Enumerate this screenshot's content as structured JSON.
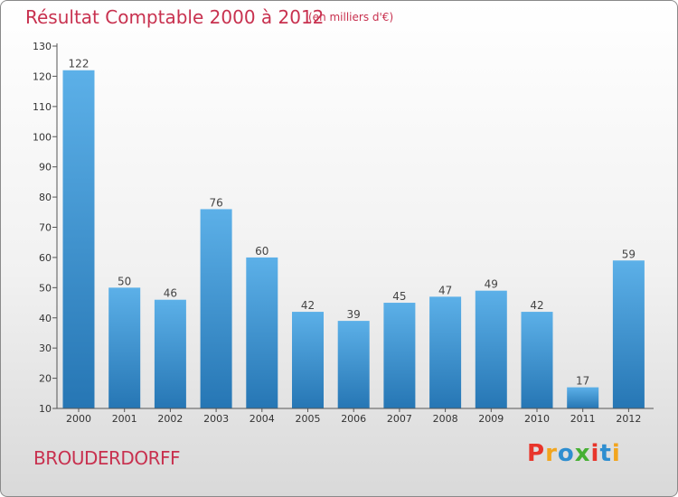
{
  "header": {
    "title": "Résultat Comptable 2000 à 2012",
    "subtitle": "(en milliers d'€)"
  },
  "footer": {
    "commune": "BROUDERDORFF",
    "logo_text": "Proxiti",
    "logo_colors": [
      "#e8352b",
      "#f2a51e",
      "#2e8ed0",
      "#47b034",
      "#e8352b",
      "#2e8ed0",
      "#f2a51e"
    ]
  },
  "chart_data": {
    "type": "bar",
    "title": "Résultat Comptable 2000 à 2012",
    "unit": "(en milliers d'€)",
    "categories": [
      "2000",
      "2001",
      "2002",
      "2003",
      "2004",
      "2005",
      "2006",
      "2007",
      "2008",
      "2009",
      "2010",
      "2011",
      "2012"
    ],
    "values": [
      122,
      50,
      46,
      76,
      60,
      42,
      39,
      45,
      47,
      49,
      42,
      17,
      59
    ],
    "ylim": [
      10,
      130
    ],
    "yticks": [
      10,
      20,
      30,
      40,
      50,
      60,
      70,
      80,
      90,
      100,
      110,
      120,
      130
    ],
    "xlabel": "",
    "ylabel": "",
    "grid": false,
    "bar_color_light": "#5cb0e8",
    "bar_color_dark": "#2676b4",
    "label_color": "#444444"
  }
}
